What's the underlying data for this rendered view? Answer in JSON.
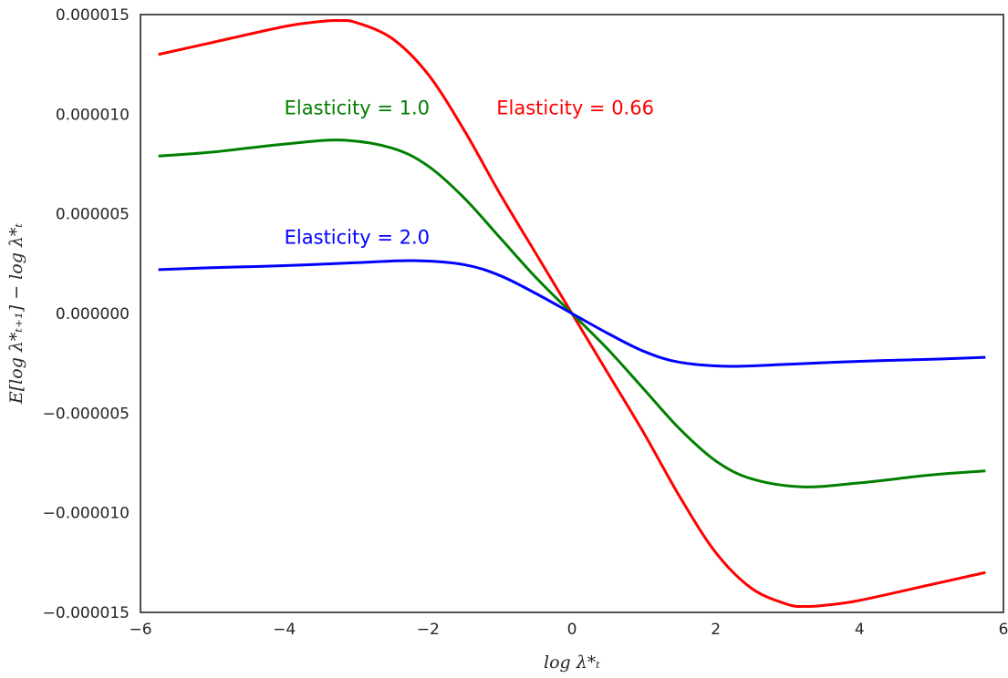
{
  "chart_data": {
    "type": "line",
    "xlabel": "log λ*ₜ",
    "ylabel": "E[log λ*ₜ₊₁] − log λ*ₜ",
    "xlim": [
      -6,
      6
    ],
    "ylim": [
      -1.5e-05,
      1.5e-05
    ],
    "xticks": [
      -6,
      -4,
      -2,
      0,
      2,
      4,
      6
    ],
    "xtick_labels": [
      "−6",
      "−4",
      "−2",
      "0",
      "2",
      "4",
      "6"
    ],
    "yticks": [
      1.5e-05,
      1e-05,
      5e-06,
      0,
      -5e-06,
      -1e-05,
      -1.5e-05
    ],
    "ytick_labels": [
      "0.000015",
      "0.000010",
      "0.000005",
      "0.000000",
      "−0.000005",
      "−0.000010",
      "−0.000015"
    ],
    "grid": false,
    "series": [
      {
        "name": "Elasticity = 0.66",
        "color": "#ff0000",
        "x": [
          -5.75,
          -5,
          -4,
          -3.5,
          -3.25,
          -3,
          -2.5,
          -2,
          -1.5,
          -1,
          -0.5,
          0,
          0.5,
          1,
          1.5,
          2,
          2.5,
          3,
          3.25,
          3.5,
          4,
          5,
          5.75
        ],
        "values": [
          1.3e-05,
          1.36e-05,
          1.44e-05,
          1.465e-05,
          1.47e-05,
          1.46e-05,
          1.38e-05,
          1.2e-05,
          9.2e-06,
          6e-06,
          3e-06,
          0,
          -3e-06,
          -6e-06,
          -9.2e-06,
          -1.2e-05,
          -1.38e-05,
          -1.46e-05,
          -1.47e-05,
          -1.465e-05,
          -1.44e-05,
          -1.36e-05,
          -1.3e-05
        ]
      },
      {
        "name": "Elasticity = 1.0",
        "color": "#008000",
        "x": [
          -5.75,
          -5,
          -4,
          -3.2,
          -2.5,
          -2,
          -1.5,
          -1,
          -0.5,
          0,
          0.5,
          1,
          1.5,
          2,
          2.5,
          3.2,
          4,
          5,
          5.75
        ],
        "values": [
          7.9e-06,
          8.1e-06,
          8.5e-06,
          8.7e-06,
          8.3e-06,
          7.4e-06,
          5.8e-06,
          3.8e-06,
          1.8e-06,
          0,
          -1.8e-06,
          -3.8e-06,
          -5.8e-06,
          -7.4e-06,
          -8.3e-06,
          -8.7e-06,
          -8.5e-06,
          -8.1e-06,
          -7.9e-06
        ]
      },
      {
        "name": "Elasticity = 2.0",
        "color": "#0000ff",
        "x": [
          -5.75,
          -5,
          -4,
          -3,
          -2.2,
          -1.5,
          -1,
          -0.5,
          0,
          0.5,
          1,
          1.5,
          2.2,
          3,
          4,
          5,
          5.75
        ],
        "values": [
          2.2e-06,
          2.3e-06,
          2.4e-06,
          2.55e-06,
          2.65e-06,
          2.45e-06,
          1.9e-06,
          1e-06,
          0,
          -1e-06,
          -1.9e-06,
          -2.45e-06,
          -2.65e-06,
          -2.55e-06,
          -2.4e-06,
          -2.3e-06,
          -2.2e-06
        ]
      }
    ],
    "annotations": [
      {
        "text": "Elasticity = 0.66",
        "x": -1.05,
        "y": 1e-05,
        "color": "#ff0000"
      },
      {
        "text": "Elasticity = 1.0",
        "x": -4.0,
        "y": 1e-05,
        "color": "#008000"
      },
      {
        "text": "Elasticity = 2.0",
        "x": -4.0,
        "y": 3.5e-06,
        "color": "#0000ff"
      }
    ]
  }
}
